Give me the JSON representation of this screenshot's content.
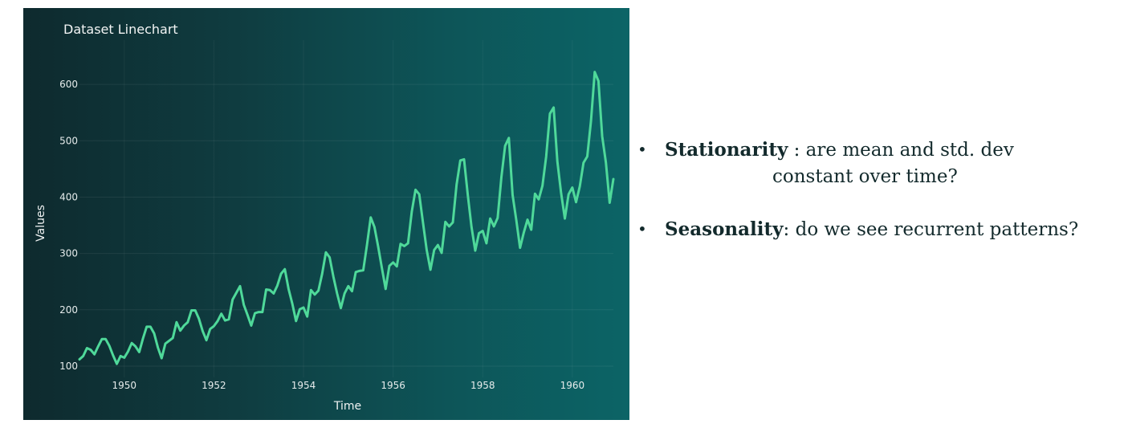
{
  "chart_data": {
    "type": "line",
    "title": "Dataset Linechart",
    "xlabel": "Time",
    "ylabel": "Values",
    "x_tick_labels": [
      "1950",
      "1952",
      "1954",
      "1956",
      "1958",
      "1960"
    ],
    "y_tick_labels": [
      "100",
      "200",
      "300",
      "400",
      "500",
      "600"
    ],
    "xlim": [
      "1949-01",
      "1960-12"
    ],
    "ylim": [
      80,
      650
    ],
    "grid": true,
    "line_color": "#4fd99a",
    "x_start": "1949-01",
    "x_step": "1 month",
    "series": [
      {
        "values": [
          112,
          118,
          132,
          129,
          121,
          135,
          148,
          148,
          136,
          119,
          104,
          118,
          115,
          126,
          141,
          135,
          125,
          149,
          170,
          170,
          158,
          133,
          114,
          140,
          145,
          150,
          178,
          163,
          172,
          178,
          199,
          199,
          184,
          162,
          146,
          166,
          171,
          180,
          193,
          181,
          183,
          218,
          230,
          242,
          209,
          191,
          172,
          194,
          196,
          196,
          236,
          235,
          229,
          243,
          264,
          272,
          237,
          211,
          180,
          201,
          204,
          188,
          235,
          227,
          234,
          264,
          302,
          293,
          259,
          229,
          203,
          229,
          242,
          233,
          267,
          269,
          270,
          315,
          364,
          347,
          312,
          274,
          237,
          278,
          284,
          277,
          317,
          313,
          318,
          374,
          413,
          405,
          355,
          306,
          271,
          306,
          315,
          301,
          356,
          348,
          355,
          422,
          465,
          467,
          404,
          347,
          305,
          336,
          340,
          318,
          362,
          348,
          363,
          435,
          491,
          505,
          404,
          359,
          310,
          337,
          360,
          342,
          406,
          396,
          420,
          472,
          548,
          559,
          463,
          407,
          362,
          405,
          417,
          391,
          419,
          461,
          472,
          535,
          622,
          606,
          508,
          461,
          390,
          432
        ]
      }
    ]
  },
  "notes": {
    "bullet": "•",
    "stationarity": {
      "keyword": "Stationarity",
      "line1": " :  are mean and std. dev",
      "line2": "constant over time?"
    },
    "seasonality": {
      "keyword": "Seasonality",
      "text": ": do we see recurrent patterns?"
    }
  }
}
